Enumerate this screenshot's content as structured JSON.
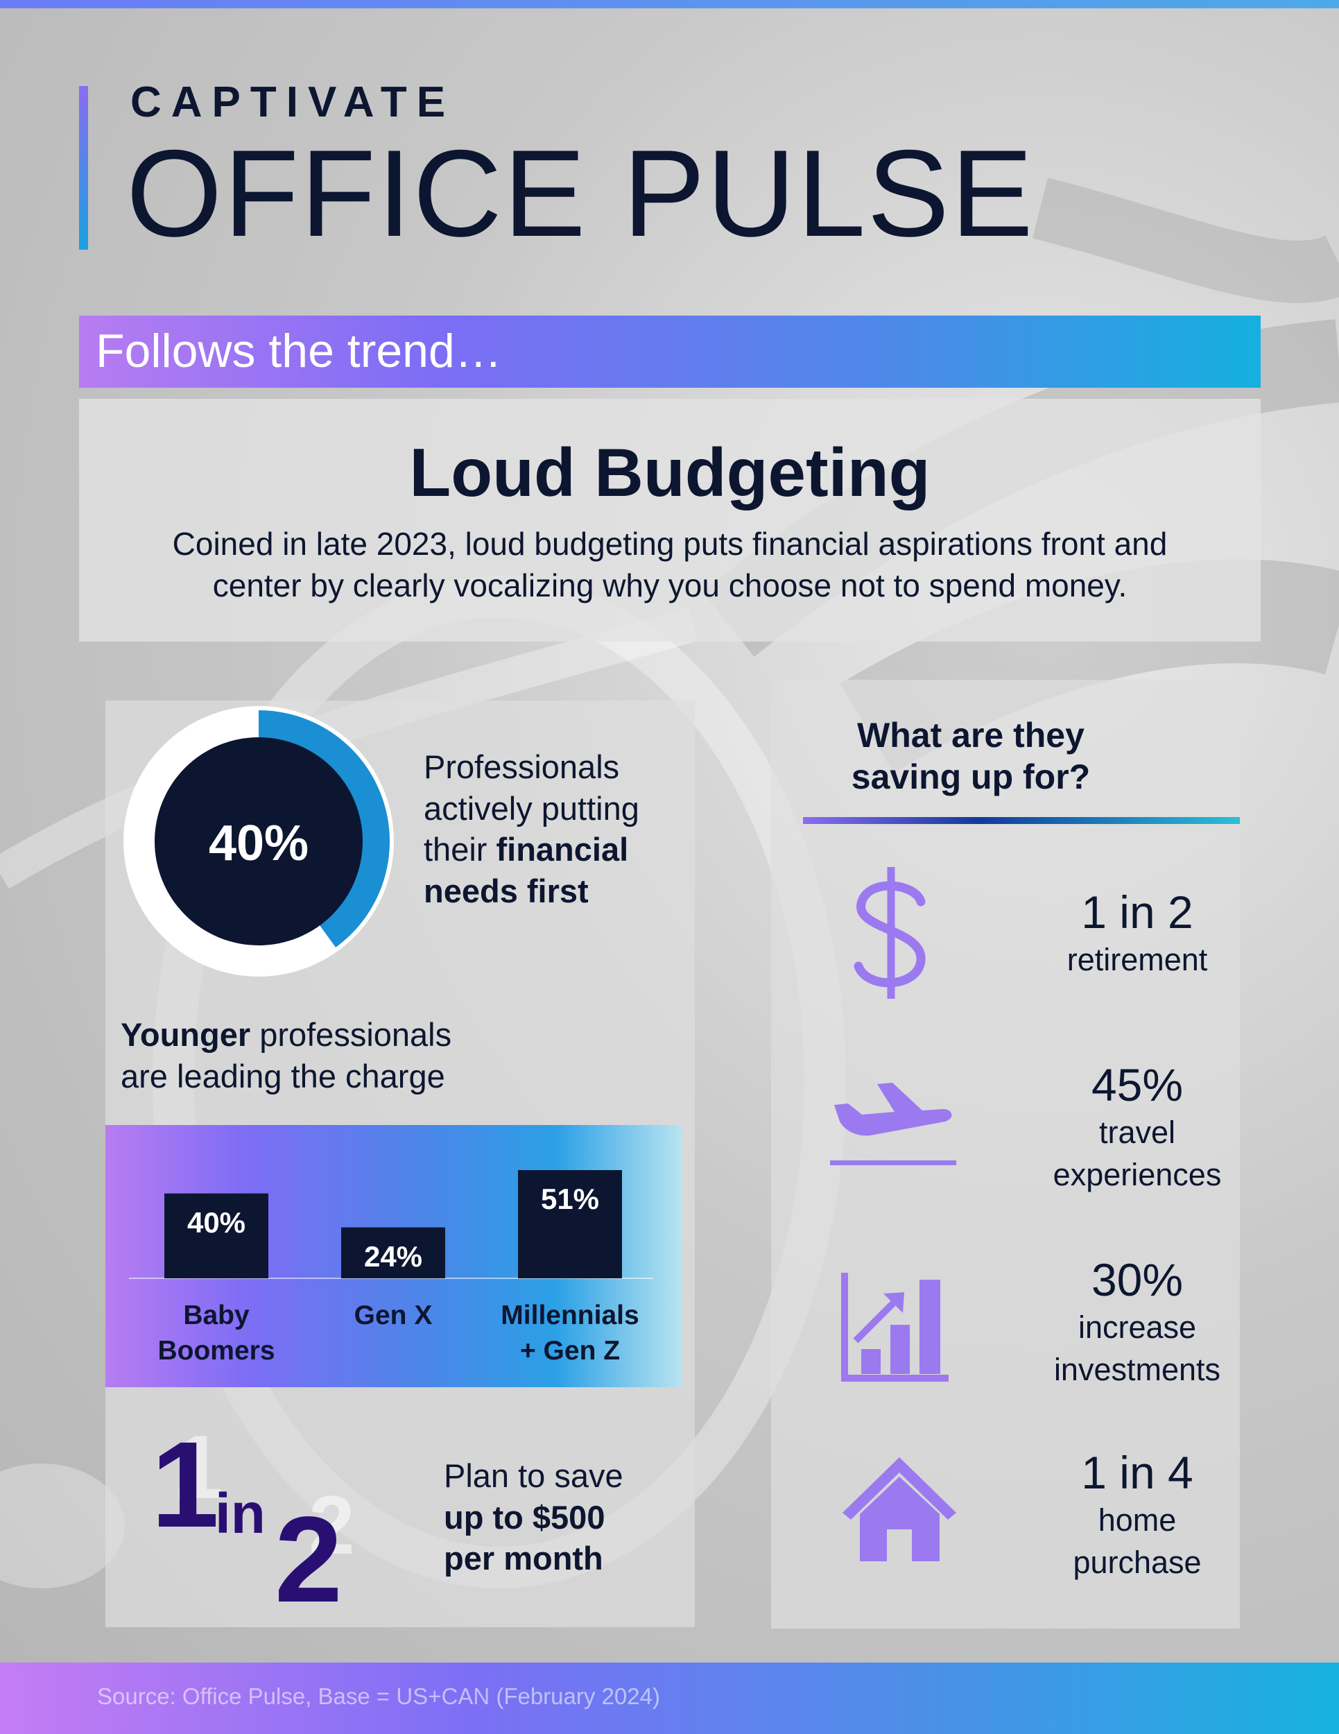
{
  "brand": {
    "company": "CAPTIVATE",
    "product": "OFFICE PULSE"
  },
  "banner": {
    "text": "Follows the trend…"
  },
  "intro": {
    "title": "Loud Budgeting",
    "line1": "Coined in late 2023, loud budgeting puts financial aspirations front and",
    "line2": "center by clearly vocalizing why you choose not to spend money."
  },
  "donut": {
    "value_percent": 40,
    "value_label": "40%",
    "caption_line1": "Professionals",
    "caption_line2": "actively putting",
    "caption_line3_plain": "their ",
    "caption_line3_bold": "financial",
    "caption_line4_bold": "needs first",
    "colors": {
      "fill": "#1a8fd4",
      "track": "#ffffff",
      "center": "#0d1630"
    }
  },
  "generations": {
    "heading_bold": "Younger",
    "heading_rest": " professionals",
    "heading_line2": "are leading the charge",
    "chart_data": {
      "type": "bar",
      "categories": [
        "Baby Boomers",
        "Gen X",
        "Millennials + Gen Z"
      ],
      "values": [
        40,
        24,
        51
      ],
      "value_labels": [
        "40%",
        "24%",
        "51%"
      ]
    },
    "category_lines": [
      [
        "Baby",
        "Boomers"
      ],
      [
        "Gen X"
      ],
      [
        "Millennials",
        "+ Gen Z"
      ]
    ],
    "bar_color": "#0d1630"
  },
  "savings_plan": {
    "ratio_num": "1",
    "ratio_in": "in",
    "ratio_den": "2",
    "line1": "Plan to save",
    "line2_bold": "up to $500",
    "line3_bold": "per month"
  },
  "goals": {
    "title_line1": "What are they",
    "title_line2": "saving up for?",
    "items": [
      {
        "icon": "dollar-icon",
        "stat": "1 in 2",
        "label_lines": [
          "retirement"
        ]
      },
      {
        "icon": "airplane-icon",
        "stat": "45%",
        "label_lines": [
          "travel",
          "experiences"
        ]
      },
      {
        "icon": "growth-chart-icon",
        "stat": "30%",
        "label_lines": [
          "increase",
          "investments"
        ]
      },
      {
        "icon": "house-icon",
        "stat": "1 in 4",
        "label_lines": [
          "home",
          "purchase"
        ]
      }
    ],
    "icon_color": "#9b7af0"
  },
  "footer": {
    "source": "Source: Office Pulse, Base = US+CAN (February 2024)"
  }
}
